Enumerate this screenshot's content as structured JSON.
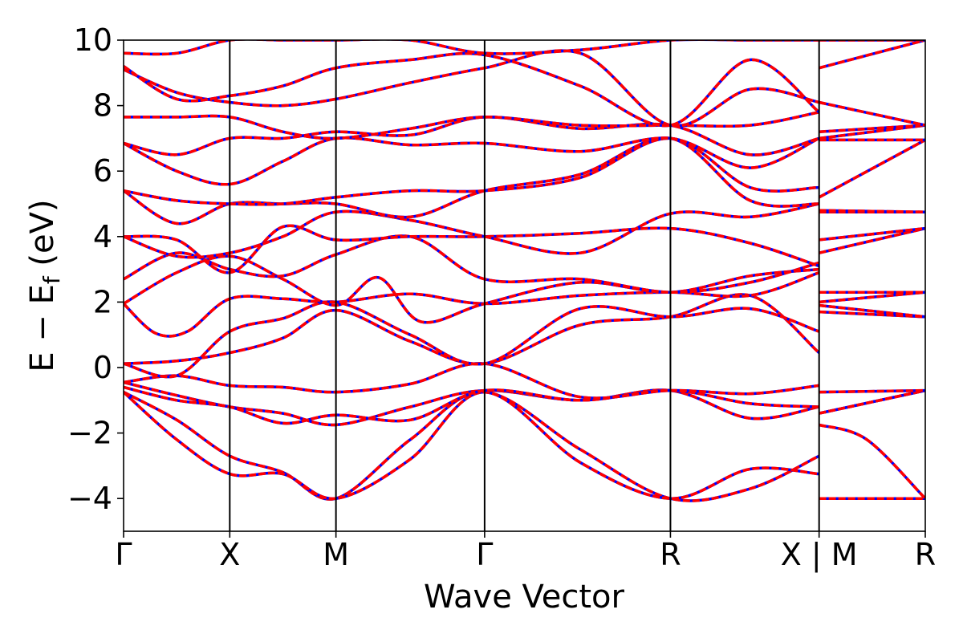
{
  "chart_data": {
    "type": "line",
    "xlabel": "Wave Vector",
    "ylabel_parts": {
      "main": "E − E",
      "sub": "f",
      "unit": " (eV)"
    },
    "ylim": [
      -5,
      10
    ],
    "y_ticks": [
      -4,
      -2,
      0,
      2,
      4,
      6,
      8,
      10
    ],
    "y_tick_labels": [
      "−4",
      "−2",
      "0",
      "2",
      "4",
      "6",
      "8",
      "10"
    ],
    "grid": false,
    "k_path": {
      "points": [
        "Γ",
        "X",
        "M",
        "Γ",
        "R",
        "X | M",
        "R"
      ],
      "positions": [
        0,
        1,
        2,
        3.4,
        5.15,
        6.55,
        7.55
      ],
      "xlim": [
        0,
        7.55
      ]
    },
    "series_styles": [
      {
        "style": "solid",
        "color": "#0000ff"
      },
      {
        "style": "dashed",
        "color": "#ff0000"
      }
    ],
    "bands": [
      [
        [
          0,
          -0.75
        ],
        [
          0.5,
          -1.6
        ],
        [
          1,
          -2.7
        ],
        [
          1.5,
          -3.2
        ],
        [
          2,
          -4.0
        ],
        [
          2.7,
          -2.2
        ],
        [
          3.4,
          -0.75
        ],
        [
          4.3,
          -2.5
        ],
        [
          5.15,
          -4.0
        ],
        [
          5.9,
          -3.7
        ],
        [
          6.55,
          -2.7
        ],
        [
          6.55,
          -4.0
        ],
        [
          7.55,
          -4.0
        ]
      ],
      [
        [
          0,
          -0.75
        ],
        [
          0.5,
          -2.2
        ],
        [
          1,
          -3.25
        ],
        [
          1.5,
          -3.25
        ],
        [
          2,
          -4.0
        ],
        [
          2.7,
          -2.8
        ],
        [
          3.4,
          -0.75
        ],
        [
          4.3,
          -2.9
        ],
        [
          5.15,
          -4.0
        ],
        [
          5.9,
          -3.1
        ],
        [
          6.55,
          -3.25
        ],
        [
          6.55,
          -1.75
        ],
        [
          7.0,
          -2.2
        ],
        [
          7.55,
          -4.0
        ]
      ],
      [
        [
          0,
          -0.45
        ],
        [
          0.5,
          -0.85
        ],
        [
          1,
          -1.2
        ],
        [
          1.5,
          -1.4
        ],
        [
          2,
          -1.75
        ],
        [
          2.7,
          -1.2
        ],
        [
          3.4,
          -0.7
        ],
        [
          4.3,
          -1.0
        ],
        [
          5.15,
          -0.7
        ],
        [
          5.9,
          -1.55
        ],
        [
          6.55,
          -1.2
        ],
        [
          6.55,
          -1.4
        ],
        [
          7.55,
          -0.7
        ]
      ],
      [
        [
          0,
          -0.6
        ],
        [
          0.5,
          -1.0
        ],
        [
          1,
          -1.2
        ],
        [
          1.5,
          -1.7
        ],
        [
          2,
          -1.45
        ],
        [
          2.7,
          -1.6
        ],
        [
          3.4,
          -0.7
        ],
        [
          4.3,
          -1.0
        ],
        [
          5.15,
          -0.7
        ],
        [
          5.9,
          -1.1
        ],
        [
          6.55,
          -1.2
        ],
        [
          6.55,
          -1.4
        ],
        [
          7.55,
          -0.7
        ]
      ],
      [
        [
          0,
          -0.45
        ],
        [
          0.5,
          -0.25
        ],
        [
          1,
          -0.55
        ],
        [
          1.5,
          -0.6
        ],
        [
          2,
          -0.75
        ],
        [
          2.7,
          -0.5
        ],
        [
          3.4,
          0.12
        ],
        [
          4.3,
          -0.9
        ],
        [
          5.15,
          -0.7
        ],
        [
          5.9,
          -0.8
        ],
        [
          6.55,
          -0.55
        ],
        [
          6.55,
          -0.75
        ],
        [
          7.55,
          -0.7
        ]
      ],
      [
        [
          0,
          0.12
        ],
        [
          0.5,
          0.2
        ],
        [
          1,
          0.45
        ],
        [
          1.5,
          0.9
        ],
        [
          2,
          1.75
        ],
        [
          2.7,
          0.8
        ],
        [
          3.4,
          0.12
        ],
        [
          4.3,
          1.3
        ],
        [
          5.15,
          1.55
        ],
        [
          5.9,
          2.2
        ],
        [
          6.55,
          0.45
        ],
        [
          6.55,
          1.7
        ],
        [
          7.55,
          1.55
        ]
      ],
      [
        [
          0,
          0.12
        ],
        [
          0.5,
          -0.25
        ],
        [
          1,
          1.1
        ],
        [
          1.5,
          1.5
        ],
        [
          2,
          2.0
        ],
        [
          2.7,
          1.0
        ],
        [
          3.4,
          0.12
        ],
        [
          4.3,
          1.8
        ],
        [
          5.15,
          1.55
        ],
        [
          5.9,
          1.8
        ],
        [
          6.55,
          1.1
        ],
        [
          6.55,
          1.9
        ],
        [
          7.55,
          1.55
        ]
      ],
      [
        [
          0,
          1.95
        ],
        [
          0.3,
          1.05
        ],
        [
          0.6,
          1.1
        ],
        [
          1,
          2.1
        ],
        [
          1.5,
          2.1
        ],
        [
          2,
          2.0
        ],
        [
          2.7,
          2.25
        ],
        [
          3.4,
          1.95
        ],
        [
          4.3,
          2.2
        ],
        [
          5.15,
          2.3
        ],
        [
          5.9,
          2.2
        ],
        [
          6.55,
          2.9
        ],
        [
          6.55,
          2.0
        ],
        [
          7.55,
          2.3
        ]
      ],
      [
        [
          0,
          1.95
        ],
        [
          0.5,
          2.9
        ],
        [
          1,
          3.4
        ],
        [
          1.5,
          2.7
        ],
        [
          2,
          1.9
        ],
        [
          2.4,
          2.75
        ],
        [
          2.8,
          1.4
        ],
        [
          3.4,
          1.95
        ],
        [
          4.3,
          2.6
        ],
        [
          5.15,
          2.3
        ],
        [
          5.9,
          2.8
        ],
        [
          6.55,
          3.0
        ],
        [
          6.55,
          2.3
        ],
        [
          7.55,
          2.3
        ]
      ],
      [
        [
          0,
          2.7
        ],
        [
          0.5,
          3.5
        ],
        [
          1,
          3.0
        ],
        [
          1.5,
          2.8
        ],
        [
          2,
          3.45
        ],
        [
          2.7,
          4.0
        ],
        [
          3.4,
          2.7
        ],
        [
          4.3,
          2.7
        ],
        [
          5.15,
          2.3
        ],
        [
          5.9,
          2.6
        ],
        [
          6.55,
          3.2
        ],
        [
          6.55,
          3.5
        ],
        [
          7.55,
          4.25
        ]
      ],
      [
        [
          0,
          4.0
        ],
        [
          0.5,
          3.9
        ],
        [
          1,
          2.9
        ],
        [
          1.5,
          4.3
        ],
        [
          2,
          3.9
        ],
        [
          2.7,
          4.0
        ],
        [
          3.4,
          4.0
        ],
        [
          4.3,
          4.1
        ],
        [
          5.15,
          4.25
        ],
        [
          5.9,
          3.8
        ],
        [
          6.55,
          3.1
        ],
        [
          6.55,
          3.9
        ],
        [
          7.55,
          4.25
        ]
      ],
      [
        [
          0,
          4.0
        ],
        [
          0.5,
          3.4
        ],
        [
          1,
          3.5
        ],
        [
          1.5,
          4.0
        ],
        [
          2,
          4.75
        ],
        [
          2.7,
          4.5
        ],
        [
          3.4,
          4.0
        ],
        [
          4.3,
          3.5
        ],
        [
          5.15,
          4.7
        ],
        [
          5.9,
          4.6
        ],
        [
          6.55,
          5.0
        ],
        [
          6.55,
          4.75
        ],
        [
          7.55,
          4.75
        ]
      ],
      [
        [
          0,
          5.4
        ],
        [
          0.5,
          4.4
        ],
        [
          1,
          5.0
        ],
        [
          1.5,
          5.0
        ],
        [
          2,
          5.0
        ],
        [
          2.7,
          4.6
        ],
        [
          3.4,
          5.4
        ],
        [
          4.3,
          5.9
        ],
        [
          5.15,
          7.0
        ],
        [
          5.9,
          5.1
        ],
        [
          6.55,
          5.0
        ],
        [
          6.55,
          4.8
        ],
        [
          7.55,
          4.75
        ]
      ],
      [
        [
          0,
          5.4
        ],
        [
          0.5,
          5.1
        ],
        [
          1,
          5.0
        ],
        [
          1.5,
          5.0
        ],
        [
          2,
          5.2
        ],
        [
          2.7,
          5.4
        ],
        [
          3.4,
          5.4
        ],
        [
          4.3,
          5.8
        ],
        [
          5.15,
          7.0
        ],
        [
          5.9,
          5.5
        ],
        [
          6.55,
          5.5
        ],
        [
          6.55,
          5.2
        ],
        [
          7.55,
          6.95
        ]
      ],
      [
        [
          0,
          6.85
        ],
        [
          0.5,
          6.0
        ],
        [
          1,
          5.6
        ],
        [
          1.5,
          6.3
        ],
        [
          2,
          7.0
        ],
        [
          2.7,
          6.8
        ],
        [
          3.4,
          6.85
        ],
        [
          4.3,
          6.6
        ],
        [
          5.15,
          7.0
        ],
        [
          5.9,
          6.1
        ],
        [
          6.55,
          7.0
        ],
        [
          6.55,
          6.95
        ],
        [
          7.55,
          6.95
        ]
      ],
      [
        [
          0,
          6.85
        ],
        [
          0.5,
          6.5
        ],
        [
          1,
          7.0
        ],
        [
          1.5,
          7.0
        ],
        [
          2,
          7.2
        ],
        [
          2.7,
          7.1
        ],
        [
          3.4,
          7.65
        ],
        [
          4.3,
          7.3
        ],
        [
          5.15,
          7.4
        ],
        [
          5.9,
          6.5
        ],
        [
          6.55,
          7.0
        ],
        [
          6.55,
          7.0
        ],
        [
          7.55,
          7.4
        ]
      ],
      [
        [
          0,
          7.65
        ],
        [
          0.5,
          7.65
        ],
        [
          1,
          7.65
        ],
        [
          1.5,
          7.2
        ],
        [
          2,
          7.0
        ],
        [
          2.7,
          7.3
        ],
        [
          3.4,
          7.65
        ],
        [
          4.3,
          7.4
        ],
        [
          5.15,
          7.4
        ],
        [
          5.9,
          7.4
        ],
        [
          6.55,
          7.8
        ],
        [
          6.55,
          7.2
        ],
        [
          7.55,
          7.4
        ]
      ],
      [
        [
          0,
          9.1
        ],
        [
          0.5,
          8.4
        ],
        [
          1,
          8.1
        ],
        [
          1.5,
          8.0
        ],
        [
          2,
          8.2
        ],
        [
          2.7,
          8.7
        ],
        [
          3.4,
          9.15
        ],
        [
          4.3,
          9.6
        ],
        [
          5.15,
          7.4
        ],
        [
          5.9,
          8.5
        ],
        [
          6.55,
          8.1
        ],
        [
          6.55,
          8.1
        ],
        [
          7.55,
          7.4
        ]
      ],
      [
        [
          0,
          9.2
        ],
        [
          0.5,
          8.2
        ],
        [
          1,
          8.3
        ],
        [
          1.5,
          8.6
        ],
        [
          2,
          9.15
        ],
        [
          2.7,
          9.4
        ],
        [
          3.4,
          9.55
        ],
        [
          4.3,
          8.6
        ],
        [
          5.15,
          7.4
        ],
        [
          5.9,
          9.4
        ],
        [
          6.55,
          7.8
        ],
        [
          6.55,
          9.15
        ],
        [
          7.55,
          10.0
        ]
      ],
      [
        [
          0,
          9.6
        ],
        [
          0.5,
          9.6
        ],
        [
          1,
          10.0
        ],
        [
          1.5,
          10.0
        ],
        [
          2,
          10.0
        ],
        [
          2.7,
          10.0
        ],
        [
          3.4,
          9.6
        ],
        [
          4.3,
          9.7
        ],
        [
          5.15,
          10.0
        ],
        [
          5.9,
          10.0
        ],
        [
          6.55,
          10.0
        ],
        [
          6.55,
          10.0
        ],
        [
          7.55,
          10.0
        ]
      ]
    ]
  }
}
